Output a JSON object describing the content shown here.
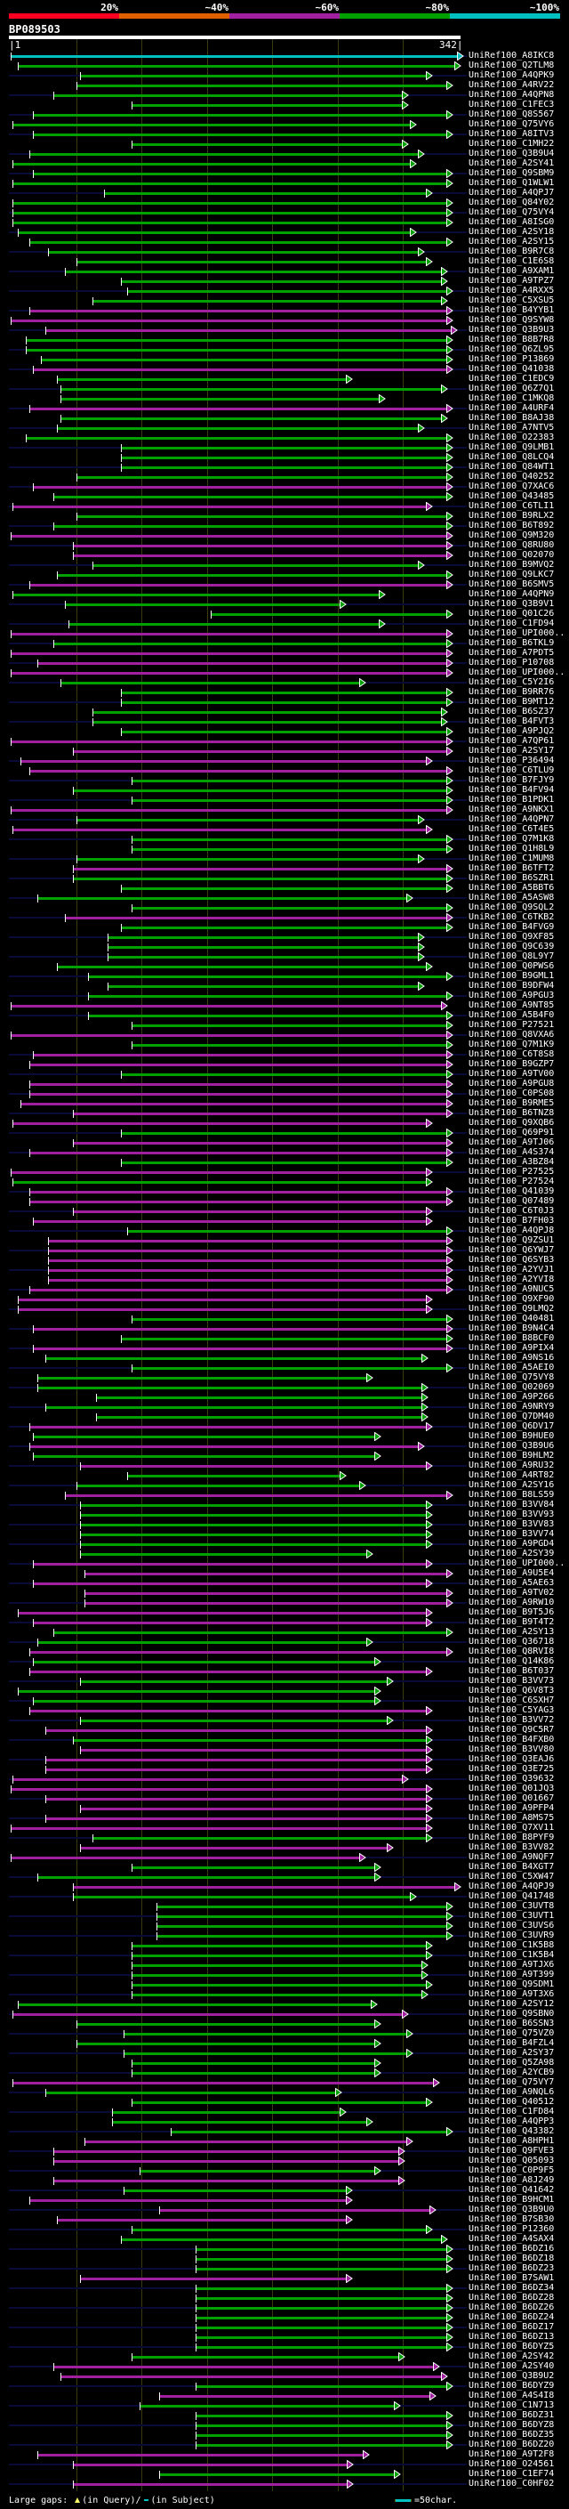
{
  "key": {
    "labels": [
      "20%",
      "~40%",
      "~60%",
      "~80%",
      "~100%"
    ],
    "colors": [
      "#ff0020",
      "#e06000",
      "#a020a0",
      "#00a000",
      "#00c0c0"
    ]
  },
  "query": {
    "title": "BP089503",
    "start_label": "|1",
    "end_label": "342|",
    "length": 342,
    "ticks": [
      50,
      100,
      150,
      200,
      250,
      300
    ]
  },
  "hit_colors": {
    "c": "#00c0c0",
    "g": "#00a000",
    "m": "#a020a0"
  },
  "hits": [
    [
      "UniRef100_A8IKC8",
      1,
      342,
      "c"
    ],
    [
      "UniRef100_Q2TLM8",
      6,
      340,
      "g"
    ],
    [
      "UniRef100_A4QPK9",
      54,
      318,
      "g"
    ],
    [
      "UniRef100_A4RV22",
      51,
      334,
      "g"
    ],
    [
      "UniRef100_A4QPN8",
      33,
      300,
      "g"
    ],
    [
      "UniRef100_C1FEC3",
      93,
      300,
      "g"
    ],
    [
      "UniRef100_Q8S567",
      18,
      334,
      "g"
    ],
    [
      "UniRef100_Q75VY6",
      2,
      306,
      "g"
    ],
    [
      "UniRef100_A8ITV3",
      18,
      334,
      "g"
    ],
    [
      "UniRef100_C1MH22",
      93,
      300,
      "g"
    ],
    [
      "UniRef100_Q3B9U4",
      15,
      312,
      "g"
    ],
    [
      "UniRef100_A2SY41",
      2,
      306,
      "g"
    ],
    [
      "UniRef100_Q9SBM9",
      18,
      334,
      "g"
    ],
    [
      "UniRef100_Q1WLW1",
      2,
      334,
      "g"
    ],
    [
      "UniRef100_A4QPJ7",
      72,
      318,
      "g"
    ],
    [
      "UniRef100_Q84Y02",
      2,
      334,
      "g"
    ],
    [
      "UniRef100_Q75VY4",
      2,
      334,
      "g"
    ],
    [
      "UniRef100_A8ISG0",
      2,
      334,
      "g"
    ],
    [
      "UniRef100_A2SY18",
      6,
      306,
      "g"
    ],
    [
      "UniRef100_A2SY15",
      15,
      334,
      "g"
    ],
    [
      "UniRef100_B9R7C8",
      29,
      312,
      "g"
    ],
    [
      "UniRef100_C1E6S8",
      51,
      318,
      "g"
    ],
    [
      "UniRef100_A9XAM1",
      42,
      330,
      "g"
    ],
    [
      "UniRef100_A9TPZ7",
      85,
      330,
      "g"
    ],
    [
      "UniRef100_A4RXX5",
      90,
      334,
      "g"
    ],
    [
      "UniRef100_C5XSU5",
      63,
      330,
      "g"
    ],
    [
      "UniRef100_B4YYB1",
      15,
      334,
      "m"
    ],
    [
      "UniRef100_Q9SYW8",
      1,
      334,
      "m"
    ],
    [
      "UniRef100_Q3B9U3",
      27,
      337,
      "m"
    ],
    [
      "UniRef100_B8B7R8",
      12,
      334,
      "g"
    ],
    [
      "UniRef100_Q6ZL95",
      12,
      334,
      "g"
    ],
    [
      "UniRef100_P13869",
      24,
      334,
      "g"
    ],
    [
      "UniRef100_Q41038",
      18,
      334,
      "m"
    ],
    [
      "UniRef100_C1EDC9",
      36,
      257,
      "g"
    ],
    [
      "UniRef100_Q6Z7Q1",
      39,
      330,
      "g"
    ],
    [
      "UniRef100_C1MKQ8",
      39,
      282,
      "g"
    ],
    [
      "UniRef100_A4URF4",
      15,
      334,
      "m"
    ],
    [
      "UniRef100_B8AJ38",
      39,
      330,
      "g"
    ],
    [
      "UniRef100_A7NTV5",
      36,
      312,
      "g"
    ],
    [
      "UniRef100_O22383",
      12,
      334,
      "g"
    ],
    [
      "UniRef100_Q9LMB1",
      85,
      334,
      "g"
    ],
    [
      "UniRef100_Q8LCQ4",
      85,
      334,
      "g"
    ],
    [
      "UniRef100_Q84WT1",
      85,
      334,
      "g"
    ],
    [
      "UniRef100_Q40252",
      51,
      334,
      "g"
    ],
    [
      "UniRef100_Q7XAC6",
      18,
      334,
      "m"
    ],
    [
      "UniRef100_Q43485",
      33,
      334,
      "g"
    ],
    [
      "UniRef100_C6TLI1",
      2,
      318,
      "m"
    ],
    [
      "UniRef100_B9RLX2",
      51,
      334,
      "g"
    ],
    [
      "UniRef100_B6T892",
      33,
      334,
      "g"
    ],
    [
      "UniRef100_Q9M320",
      1,
      334,
      "m"
    ],
    [
      "UniRef100_Q8RU80",
      48,
      334,
      "m"
    ],
    [
      "UniRef100_Q02070",
      48,
      334,
      "m"
    ],
    [
      "UniRef100_B9MVQ2",
      63,
      312,
      "g"
    ],
    [
      "UniRef100_Q9LKC7",
      36,
      334,
      "g"
    ],
    [
      "UniRef100_B6SMV5",
      15,
      334,
      "m"
    ],
    [
      "UniRef100_A4QPN9",
      2,
      282,
      "g"
    ],
    [
      "UniRef100_Q3B9V1",
      42,
      252,
      "g"
    ],
    [
      "UniRef100_Q01C26",
      154,
      334,
      "g"
    ],
    [
      "UniRef100_C1FD94",
      45,
      282,
      "g"
    ],
    [
      "UniRef100_UPI000..",
      1,
      334,
      "m"
    ],
    [
      "UniRef100_B6TKL9",
      33,
      334,
      "g"
    ],
    [
      "UniRef100_A7PDT5",
      1,
      334,
      "m"
    ],
    [
      "UniRef100_P10708",
      21,
      334,
      "m"
    ],
    [
      "UniRef100_UPI000..",
      1,
      334,
      "m"
    ],
    [
      "UniRef100_C5Y2I6",
      39,
      267,
      "g"
    ],
    [
      "UniRef100_B9RR76",
      85,
      334,
      "g"
    ],
    [
      "UniRef100_B9MT12",
      85,
      334,
      "g"
    ],
    [
      "UniRef100_B6SZ37",
      63,
      330,
      "g"
    ],
    [
      "UniRef100_B4FVT3",
      63,
      330,
      "g"
    ],
    [
      "UniRef100_A9PJQ2",
      85,
      334,
      "g"
    ],
    [
      "UniRef100_A7QP61",
      1,
      334,
      "m"
    ],
    [
      "UniRef100_A2SY17",
      48,
      334,
      "m"
    ],
    [
      "UniRef100_P36494",
      8,
      318,
      "m"
    ],
    [
      "UniRef100_C6TLU9",
      15,
      334,
      "m"
    ],
    [
      "UniRef100_B7FJY9",
      93,
      334,
      "g"
    ],
    [
      "UniRef100_B4FV94",
      48,
      334,
      "g"
    ],
    [
      "UniRef100_B1PDK1",
      93,
      334,
      "g"
    ],
    [
      "UniRef100_A9NKX1",
      1,
      334,
      "m"
    ],
    [
      "UniRef100_A4QPN7",
      51,
      312,
      "g"
    ],
    [
      "UniRef100_C6T4E5",
      2,
      318,
      "m"
    ],
    [
      "UniRef100_Q7M1K8",
      93,
      334,
      "g"
    ],
    [
      "UniRef100_Q1H8L9",
      93,
      334,
      "g"
    ],
    [
      "UniRef100_C1MUM8",
      51,
      312,
      "g"
    ],
    [
      "UniRef100_B6TFT2",
      48,
      334,
      "m"
    ],
    [
      "UniRef100_B6SZR1",
      48,
      334,
      "g"
    ],
    [
      "UniRef100_A5BBT6",
      85,
      334,
      "g"
    ],
    [
      "UniRef100_A5ASW8",
      21,
      303,
      "g"
    ],
    [
      "UniRef100_Q9SQL2",
      93,
      334,
      "g"
    ],
    [
      "UniRef100_C6TKB2",
      42,
      334,
      "m"
    ],
    [
      "UniRef100_B4FVG9",
      85,
      334,
      "g"
    ],
    [
      "UniRef100_Q9XF85",
      75,
      312,
      "g"
    ],
    [
      "UniRef100_Q9C639",
      75,
      312,
      "g"
    ],
    [
      "UniRef100_Q8L9Y7",
      75,
      312,
      "g"
    ],
    [
      "UniRef100_Q0PWS6",
      36,
      318,
      "g"
    ],
    [
      "UniRef100_B9GML1",
      60,
      334,
      "g"
    ],
    [
      "UniRef100_B9DFW4",
      75,
      312,
      "g"
    ],
    [
      "UniRef100_A9PGU3",
      60,
      334,
      "g"
    ],
    [
      "UniRef100_A9NT85",
      1,
      330,
      "m"
    ],
    [
      "UniRef100_A5B4F0",
      60,
      334,
      "g"
    ],
    [
      "UniRef100_P27521",
      93,
      334,
      "g"
    ],
    [
      "UniRef100_Q8VXA6",
      1,
      334,
      "m"
    ],
    [
      "UniRef100_Q7M1K9",
      93,
      334,
      "g"
    ],
    [
      "UniRef100_C6T8S8",
      18,
      334,
      "m"
    ],
    [
      "UniRef100_B9GZP7",
      15,
      334,
      "m"
    ],
    [
      "UniRef100_A9TV00",
      85,
      334,
      "g"
    ],
    [
      "UniRef100_A9PGU8",
      15,
      334,
      "m"
    ],
    [
      "UniRef100_C0PS08",
      15,
      334,
      "m"
    ],
    [
      "UniRef100_B9RME5",
      8,
      334,
      "m"
    ],
    [
      "UniRef100_B6TNZ8",
      48,
      334,
      "m"
    ],
    [
      "UniRef100_Q9XQB6",
      2,
      318,
      "m"
    ],
    [
      "UniRef100_Q69P91",
      85,
      334,
      "g"
    ],
    [
      "UniRef100_A9TJ06",
      48,
      334,
      "m"
    ],
    [
      "UniRef100_A4S374",
      15,
      334,
      "m"
    ],
    [
      "UniRef100_A3BZ84",
      85,
      334,
      "g"
    ],
    [
      "UniRef100_P27525",
      1,
      318,
      "m"
    ],
    [
      "UniRef100_P27524",
      2,
      318,
      "g"
    ],
    [
      "UniRef100_Q41039",
      15,
      334,
      "m"
    ],
    [
      "UniRef100_Q07489",
      15,
      334,
      "m"
    ],
    [
      "UniRef100_C6T0J3",
      48,
      318,
      "m"
    ],
    [
      "UniRef100_B7FH03",
      18,
      318,
      "m"
    ],
    [
      "UniRef100_A4QPJ8",
      90,
      334,
      "g"
    ],
    [
      "UniRef100_Q9ZSU1",
      29,
      334,
      "m"
    ],
    [
      "UniRef100_Q6YWJ7",
      29,
      334,
      "m"
    ],
    [
      "UniRef100_Q6SYB3",
      29,
      334,
      "m"
    ],
    [
      "UniRef100_A2YVJ1",
      29,
      334,
      "m"
    ],
    [
      "UniRef100_A2YVI8",
      29,
      334,
      "m"
    ],
    [
      "UniRef100_A9NUC5",
      15,
      334,
      "m"
    ],
    [
      "UniRef100_Q9XF90",
      6,
      318,
      "m"
    ],
    [
      "UniRef100_Q9LMQ2",
      6,
      318,
      "m"
    ],
    [
      "UniRef100_Q40481",
      93,
      334,
      "g"
    ],
    [
      "UniRef100_B9N4C4",
      18,
      334,
      "m"
    ],
    [
      "UniRef100_B8BCF0",
      85,
      334,
      "g"
    ],
    [
      "UniRef100_A9PIX4",
      18,
      334,
      "m"
    ],
    [
      "UniRef100_A9NS16",
      27,
      315,
      "g"
    ],
    [
      "UniRef100_A5AEI0",
      93,
      334,
      "g"
    ],
    [
      "UniRef100_Q75VY8",
      21,
      273,
      "g"
    ],
    [
      "UniRef100_Q02069",
      21,
      315,
      "g"
    ],
    [
      "UniRef100_A9P266",
      66,
      315,
      "g"
    ],
    [
      "UniRef100_A9NRY9",
      27,
      315,
      "g"
    ],
    [
      "UniRef100_Q7DM40",
      66,
      315,
      "g"
    ],
    [
      "UniRef100_Q6DV17",
      15,
      318,
      "m"
    ],
    [
      "UniRef100_B9HUE0",
      18,
      279,
      "g"
    ],
    [
      "UniRef100_Q3B9U6",
      15,
      312,
      "m"
    ],
    [
      "UniRef100_B9HLM2",
      18,
      279,
      "g"
    ],
    [
      "UniRef100_A9RU32",
      54,
      318,
      "m"
    ],
    [
      "UniRef100_A4RT82",
      90,
      252,
      "g"
    ],
    [
      "UniRef100_A2SY16",
      51,
      267,
      "g"
    ],
    [
      "UniRef100_B8LS59",
      42,
      334,
      "m"
    ],
    [
      "UniRef100_B3VV84",
      54,
      318,
      "g"
    ],
    [
      "UniRef100_B3VV93",
      54,
      318,
      "g"
    ],
    [
      "UniRef100_B3VV83",
      54,
      318,
      "g"
    ],
    [
      "UniRef100_B3VV74",
      54,
      318,
      "g"
    ],
    [
      "UniRef100_A9PGD4",
      54,
      318,
      "g"
    ],
    [
      "UniRef100_A2SY39",
      54,
      273,
      "g"
    ],
    [
      "UniRef100_UPI000..",
      18,
      318,
      "m"
    ],
    [
      "UniRef100_A9U5E4",
      57,
      334,
      "m"
    ],
    [
      "UniRef100_A5AE63",
      18,
      318,
      "m"
    ],
    [
      "UniRef100_A9TV02",
      57,
      334,
      "m"
    ],
    [
      "UniRef100_A9RW10",
      57,
      334,
      "m"
    ],
    [
      "UniRef100_B9T5J6",
      6,
      318,
      "m"
    ],
    [
      "UniRef100_B9T4T2",
      18,
      318,
      "m"
    ],
    [
      "UniRef100_A2SY13",
      33,
      334,
      "g"
    ],
    [
      "UniRef100_Q36718",
      21,
      273,
      "g"
    ],
    [
      "UniRef100_Q8RVI8",
      15,
      334,
      "m"
    ],
    [
      "UniRef100_Q14K86",
      18,
      279,
      "g"
    ],
    [
      "UniRef100_B6T037",
      15,
      318,
      "m"
    ],
    [
      "UniRef100_B3VV73",
      54,
      288,
      "g"
    ],
    [
      "UniRef100_Q6V8T3",
      6,
      279,
      "g"
    ],
    [
      "UniRef100_C6SXH7",
      18,
      279,
      "g"
    ],
    [
      "UniRef100_C5YAG3",
      15,
      318,
      "m"
    ],
    [
      "UniRef100_B3VV72",
      54,
      288,
      "g"
    ],
    [
      "UniRef100_Q9C5R7",
      27,
      318,
      "m"
    ],
    [
      "UniRef100_B4FXB0",
      48,
      318,
      "g"
    ],
    [
      "UniRef100_B3VV80",
      54,
      318,
      "m"
    ],
    [
      "UniRef100_Q3EAJ6",
      27,
      318,
      "m"
    ],
    [
      "UniRef100_Q3E725",
      27,
      318,
      "m"
    ],
    [
      "UniRef100_Q39632",
      2,
      300,
      "m"
    ],
    [
      "UniRef100_Q01JQ3",
      1,
      318,
      "m"
    ],
    [
      "UniRef100_Q01667",
      27,
      318,
      "m"
    ],
    [
      "UniRef100_A9PFP4",
      54,
      318,
      "m"
    ],
    [
      "UniRef100_A8MS75",
      27,
      318,
      "m"
    ],
    [
      "UniRef100_Q7XV11",
      1,
      318,
      "m"
    ],
    [
      "UniRef100_B8PYF9",
      63,
      318,
      "g"
    ],
    [
      "UniRef100_B3VV82",
      54,
      288,
      "m"
    ],
    [
      "UniRef100_A9NQF7",
      1,
      267,
      "m"
    ],
    [
      "UniRef100_B4XGT7",
      93,
      279,
      "g"
    ],
    [
      "UniRef100_C5XW47",
      21,
      279,
      "g"
    ],
    [
      "UniRef100_A4QPJ9",
      48,
      340,
      "m"
    ],
    [
      "UniRef100_Q41748",
      48,
      306,
      "g"
    ],
    [
      "UniRef100_C3UVT8",
      112,
      334,
      "g"
    ],
    [
      "UniRef100_C3UVT1",
      112,
      334,
      "g"
    ],
    [
      "UniRef100_C3UVS6",
      112,
      334,
      "g"
    ],
    [
      "UniRef100_C3UVR9",
      112,
      334,
      "g"
    ],
    [
      "UniRef100_C1K5B8",
      93,
      318,
      "g"
    ],
    [
      "UniRef100_C1K5B4",
      93,
      318,
      "g"
    ],
    [
      "UniRef100_A9TJX6",
      93,
      315,
      "g"
    ],
    [
      "UniRef100_A9T399",
      93,
      315,
      "g"
    ],
    [
      "UniRef100_Q9SDM1",
      93,
      318,
      "g"
    ],
    [
      "UniRef100_A9T3X6",
      93,
      315,
      "g"
    ],
    [
      "UniRef100_A2SY12",
      6,
      276,
      "g"
    ],
    [
      "UniRef100_Q9SBN0",
      2,
      300,
      "m"
    ],
    [
      "UniRef100_B6SSN3",
      51,
      279,
      "g"
    ],
    [
      "UniRef100_Q75VZ0",
      87,
      303,
      "g"
    ],
    [
      "UniRef100_B4FZL4",
      51,
      279,
      "g"
    ],
    [
      "UniRef100_A2SY37",
      87,
      303,
      "g"
    ],
    [
      "UniRef100_Q5ZA98",
      93,
      279,
      "g"
    ],
    [
      "UniRef100_A2YCB9",
      93,
      279,
      "g"
    ],
    [
      "UniRef100_Q75VY7",
      2,
      324,
      "m"
    ],
    [
      "UniRef100_A9NQL6",
      27,
      249,
      "g"
    ],
    [
      "UniRef100_Q40512",
      93,
      318,
      "g"
    ],
    [
      "UniRef100_C1FD84",
      78,
      252,
      "g"
    ],
    [
      "UniRef100_A4QPP3",
      78,
      273,
      "g"
    ],
    [
      "UniRef100_Q43382",
      123,
      334,
      "g"
    ],
    [
      "UniRef100_A8HPH1",
      57,
      303,
      "m"
    ],
    [
      "UniRef100_Q9FVE3",
      33,
      297,
      "m"
    ],
    [
      "UniRef100_Q05093",
      33,
      297,
      "m"
    ],
    [
      "UniRef100_C0P9F5",
      99,
      279,
      "g"
    ],
    [
      "UniRef100_A8J249",
      33,
      297,
      "m"
    ],
    [
      "UniRef100_Q41642",
      87,
      257,
      "g"
    ],
    [
      "UniRef100_B9HCM1",
      15,
      257,
      "m"
    ],
    [
      "UniRef100_Q3B9U0",
      114,
      321,
      "m"
    ],
    [
      "UniRef100_B7SB30",
      36,
      257,
      "m"
    ],
    [
      "UniRef100_P12360",
      93,
      318,
      "g"
    ],
    [
      "UniRef100_A4SAX4",
      85,
      330,
      "g"
    ],
    [
      "UniRef100_B6DZ16",
      142,
      334,
      "g"
    ],
    [
      "UniRef100_B6DZ18",
      142,
      334,
      "g"
    ],
    [
      "UniRef100_B6DZ23",
      142,
      334,
      "g"
    ],
    [
      "UniRef100_B7SAW1",
      54,
      257,
      "m"
    ],
    [
      "UniRef100_B6DZ34",
      142,
      334,
      "g"
    ],
    [
      "UniRef100_B6DZ28",
      142,
      334,
      "g"
    ],
    [
      "UniRef100_B6DZ26",
      142,
      334,
      "g"
    ],
    [
      "UniRef100_B6DZ24",
      142,
      334,
      "g"
    ],
    [
      "UniRef100_B6DZ17",
      142,
      334,
      "g"
    ],
    [
      "UniRef100_B6DZ13",
      142,
      334,
      "g"
    ],
    [
      "UniRef100_B6DYZ5",
      142,
      334,
      "g"
    ],
    [
      "UniRef100_A2SY42",
      93,
      297,
      "g"
    ],
    [
      "UniRef100_A2SY40",
      33,
      324,
      "m"
    ],
    [
      "UniRef100_Q3B9U2",
      39,
      330,
      "m"
    ],
    [
      "UniRef100_B6DYZ9",
      142,
      334,
      "g"
    ],
    [
      "UniRef100_A4S4I8",
      114,
      321,
      "m"
    ],
    [
      "UniRef100_C1N713",
      99,
      294,
      "g"
    ],
    [
      "UniRef100_B6DZ31",
      142,
      334,
      "g"
    ],
    [
      "UniRef100_B6DYZ8",
      142,
      334,
      "g"
    ],
    [
      "UniRef100_B6DZ35",
      142,
      334,
      "g"
    ],
    [
      "UniRef100_B6DZ20",
      142,
      334,
      "g"
    ],
    [
      "UniRef100_A9T2F8",
      21,
      270,
      "m"
    ],
    [
      "UniRef100_O24561",
      48,
      258,
      "m"
    ],
    [
      "UniRef100_C1EF74",
      114,
      294,
      "g"
    ],
    [
      "UniRef100_C0HF02",
      48,
      258,
      "m"
    ]
  ],
  "footer": {
    "gaps_label": "Large gaps:",
    "in_query": "(in Query)/",
    "in_subject": "(in Subject)",
    "scale_label": "=50char."
  }
}
